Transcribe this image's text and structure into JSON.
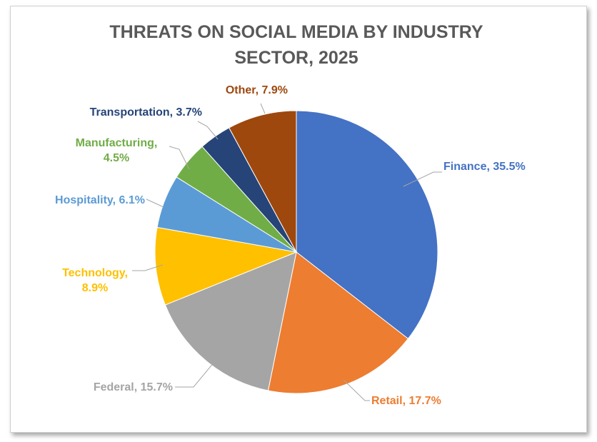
{
  "chart_data": {
    "type": "pie",
    "title_lines": [
      "THREATS ON SOCIAL MEDIA BY INDUSTRY",
      "SECTOR, 2025"
    ],
    "start_angle_deg": 0,
    "direction": "clockwise",
    "slices": [
      {
        "label": "Finance",
        "value": 35.5,
        "value_text": "35.5%",
        "color": "#4472C4",
        "label_color": "#4472C4",
        "label_lines": [
          "Finance, 35.5%"
        ]
      },
      {
        "label": "Retail",
        "value": 17.7,
        "value_text": "17.7%",
        "color": "#ED7D31",
        "label_color": "#ED7D31",
        "label_lines": [
          "Retail, 17.7%"
        ]
      },
      {
        "label": "Federal",
        "value": 15.7,
        "value_text": "15.7%",
        "color": "#A5A5A5",
        "label_color": "#A5A5A5",
        "label_lines": [
          "Federal, 15.7%"
        ]
      },
      {
        "label": "Technology",
        "value": 8.9,
        "value_text": "8.9%",
        "color": "#FFC000",
        "label_color": "#FFC000",
        "label_lines": [
          "Technology,",
          "8.9%"
        ]
      },
      {
        "label": "Hospitality",
        "value": 6.1,
        "value_text": "6.1%",
        "color": "#5B9BD5",
        "label_color": "#5B9BD5",
        "label_lines": [
          "Hospitality, 6.1%"
        ]
      },
      {
        "label": "Manufacturing",
        "value": 4.5,
        "value_text": "4.5%",
        "color": "#70AD47",
        "label_color": "#70AD47",
        "label_lines": [
          "Manufacturing,",
          "4.5%"
        ]
      },
      {
        "label": "Transportation",
        "value": 3.7,
        "value_text": "3.7%",
        "color": "#264478",
        "label_color": "#264478",
        "label_lines": [
          "Transportation, 3.7%"
        ]
      },
      {
        "label": "Other",
        "value": 7.9,
        "value_text": "7.9%",
        "color": "#9E480E",
        "label_color": "#9E480E",
        "label_lines": [
          "Other, 7.9%"
        ]
      }
    ],
    "legend": "none"
  }
}
